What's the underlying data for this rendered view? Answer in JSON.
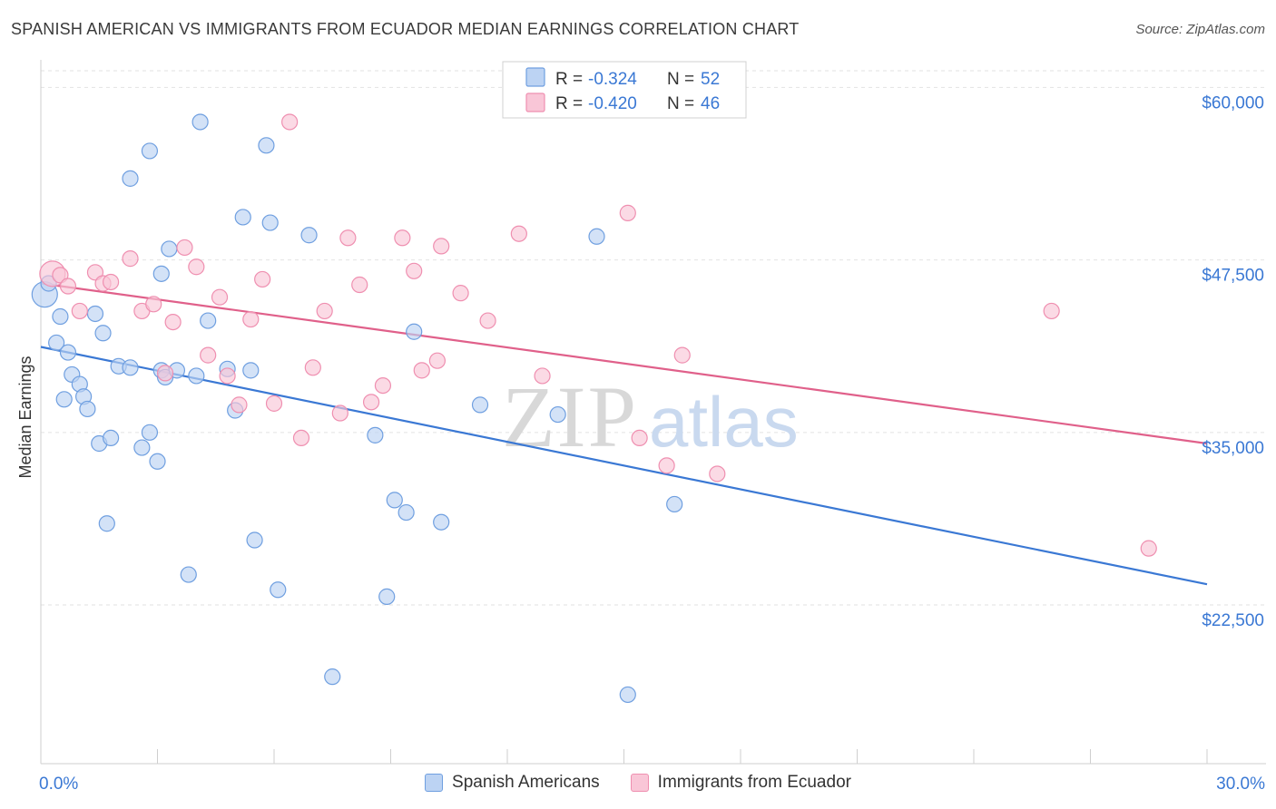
{
  "title": "SPANISH AMERICAN VS IMMIGRANTS FROM ECUADOR MEDIAN EARNINGS CORRELATION CHART",
  "source": "Source: ZipAtlas.com",
  "watermark": {
    "zip": "ZIP",
    "atlas": "atlas"
  },
  "stats": [
    {
      "r_label": "R =",
      "r": "-0.324",
      "n_label": "N =",
      "n": "52"
    },
    {
      "r_label": "R =",
      "r": "-0.420",
      "n_label": "N =",
      "n": "46"
    }
  ],
  "chart_data": {
    "type": "scatter",
    "title": "SPANISH AMERICAN VS IMMIGRANTS FROM ECUADOR MEDIAN EARNINGS CORRELATION CHART",
    "xlabel": "",
    "ylabel": "Median Earnings",
    "xlim": [
      0,
      30
    ],
    "ylim": [
      11000,
      62000
    ],
    "x_tick_labels": [
      "0.0%",
      "30.0%"
    ],
    "y_ticks": [
      22500,
      35000,
      47500,
      60000
    ],
    "y_tick_labels": [
      "$22,500",
      "$35,000",
      "$47,500",
      "$60,000"
    ],
    "grid": true,
    "legend_position": "top-center",
    "series": [
      {
        "name": "Spanish Americans",
        "color": "#6f9fe0",
        "fill": "#bcd3f3",
        "line_color": "#3a78d4",
        "trend": {
          "x": [
            0,
            30
          ],
          "y": [
            41200,
            24000
          ]
        },
        "points": [
          [
            0.1,
            45000
          ],
          [
            0.2,
            45800
          ],
          [
            0.5,
            43400
          ],
          [
            0.4,
            41500
          ],
          [
            0.7,
            40800
          ],
          [
            0.8,
            39200
          ],
          [
            0.6,
            37400
          ],
          [
            1.0,
            38500
          ],
          [
            1.1,
            37600
          ],
          [
            1.2,
            36700
          ],
          [
            1.4,
            43600
          ],
          [
            1.6,
            42200
          ],
          [
            1.5,
            34200
          ],
          [
            1.8,
            34600
          ],
          [
            1.7,
            28400
          ],
          [
            2.0,
            39800
          ],
          [
            2.3,
            39700
          ],
          [
            2.3,
            53400
          ],
          [
            2.8,
            55400
          ],
          [
            2.8,
            35000
          ],
          [
            2.6,
            33900
          ],
          [
            3.0,
            32900
          ],
          [
            3.1,
            39500
          ],
          [
            3.2,
            39000
          ],
          [
            3.3,
            48300
          ],
          [
            3.5,
            39500
          ],
          [
            3.8,
            24700
          ],
          [
            4.0,
            39100
          ],
          [
            4.1,
            57500
          ],
          [
            4.3,
            43100
          ],
          [
            4.8,
            39600
          ],
          [
            5.0,
            36600
          ],
          [
            5.2,
            50600
          ],
          [
            5.4,
            39500
          ],
          [
            5.5,
            27200
          ],
          [
            5.8,
            55800
          ],
          [
            5.9,
            50200
          ],
          [
            6.1,
            23600
          ],
          [
            6.9,
            49300
          ],
          [
            7.5,
            17300
          ],
          [
            8.6,
            34800
          ],
          [
            8.9,
            23100
          ],
          [
            9.1,
            30100
          ],
          [
            9.4,
            29200
          ],
          [
            9.6,
            42300
          ],
          [
            10.3,
            28500
          ],
          [
            11.3,
            37000
          ],
          [
            13.3,
            36300
          ],
          [
            14.3,
            49200
          ],
          [
            15.1,
            16000
          ],
          [
            16.3,
            29800
          ],
          [
            3.1,
            46500
          ]
        ]
      },
      {
        "name": "Immigrants from Ecuador",
        "color": "#ef8fb0",
        "fill": "#f9c6d7",
        "line_color": "#e0608a",
        "trend": {
          "x": [
            0,
            30
          ],
          "y": [
            45800,
            34200
          ]
        },
        "points": [
          [
            0.3,
            46500
          ],
          [
            0.5,
            46400
          ],
          [
            0.7,
            45600
          ],
          [
            1.0,
            43800
          ],
          [
            1.4,
            46600
          ],
          [
            1.6,
            45800
          ],
          [
            1.8,
            45900
          ],
          [
            2.3,
            47600
          ],
          [
            2.6,
            43800
          ],
          [
            2.9,
            44300
          ],
          [
            3.2,
            39300
          ],
          [
            3.4,
            43000
          ],
          [
            3.7,
            48400
          ],
          [
            4.0,
            47000
          ],
          [
            4.3,
            40600
          ],
          [
            4.6,
            44800
          ],
          [
            4.8,
            39100
          ],
          [
            5.1,
            37000
          ],
          [
            5.4,
            43200
          ],
          [
            5.7,
            46100
          ],
          [
            6.0,
            37100
          ],
          [
            6.4,
            57500
          ],
          [
            6.7,
            34600
          ],
          [
            7.0,
            39700
          ],
          [
            7.3,
            43800
          ],
          [
            7.7,
            36400
          ],
          [
            7.9,
            49100
          ],
          [
            8.2,
            45700
          ],
          [
            8.5,
            37200
          ],
          [
            8.8,
            38400
          ],
          [
            9.3,
            49100
          ],
          [
            9.6,
            46700
          ],
          [
            9.8,
            39500
          ],
          [
            10.2,
            40200
          ],
          [
            10.3,
            48500
          ],
          [
            10.8,
            45100
          ],
          [
            11.5,
            43100
          ],
          [
            12.3,
            49400
          ],
          [
            12.9,
            39100
          ],
          [
            15.1,
            50900
          ],
          [
            15.4,
            34600
          ],
          [
            16.1,
            32600
          ],
          [
            16.5,
            40600
          ],
          [
            17.4,
            32000
          ],
          [
            26.0,
            43800
          ],
          [
            28.5,
            26600
          ]
        ]
      }
    ]
  }
}
